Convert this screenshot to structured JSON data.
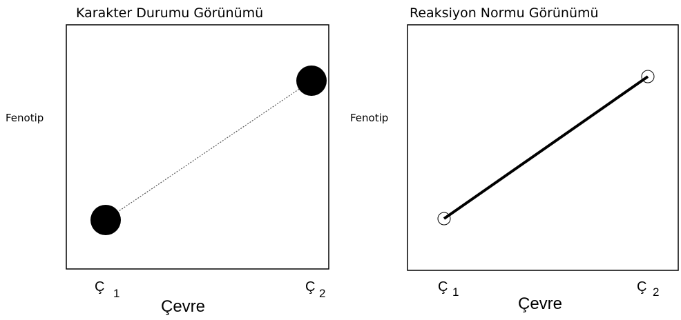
{
  "panels": [
    {
      "title": "Karakter Durumu Görünümü",
      "y_label": "Fenotip",
      "x_label": "Çevre",
      "x_points": [
        {
          "letter": "Ç",
          "index": "1"
        },
        {
          "letter": "Ç",
          "index": "2"
        }
      ]
    },
    {
      "title": "Reaksiyon Normu Görünümü",
      "y_label": "Fenotip",
      "x_label": "Çevre",
      "x_points": [
        {
          "letter": "Ç",
          "index": "1"
        },
        {
          "letter": "Ç",
          "index": "2"
        }
      ]
    }
  ]
}
